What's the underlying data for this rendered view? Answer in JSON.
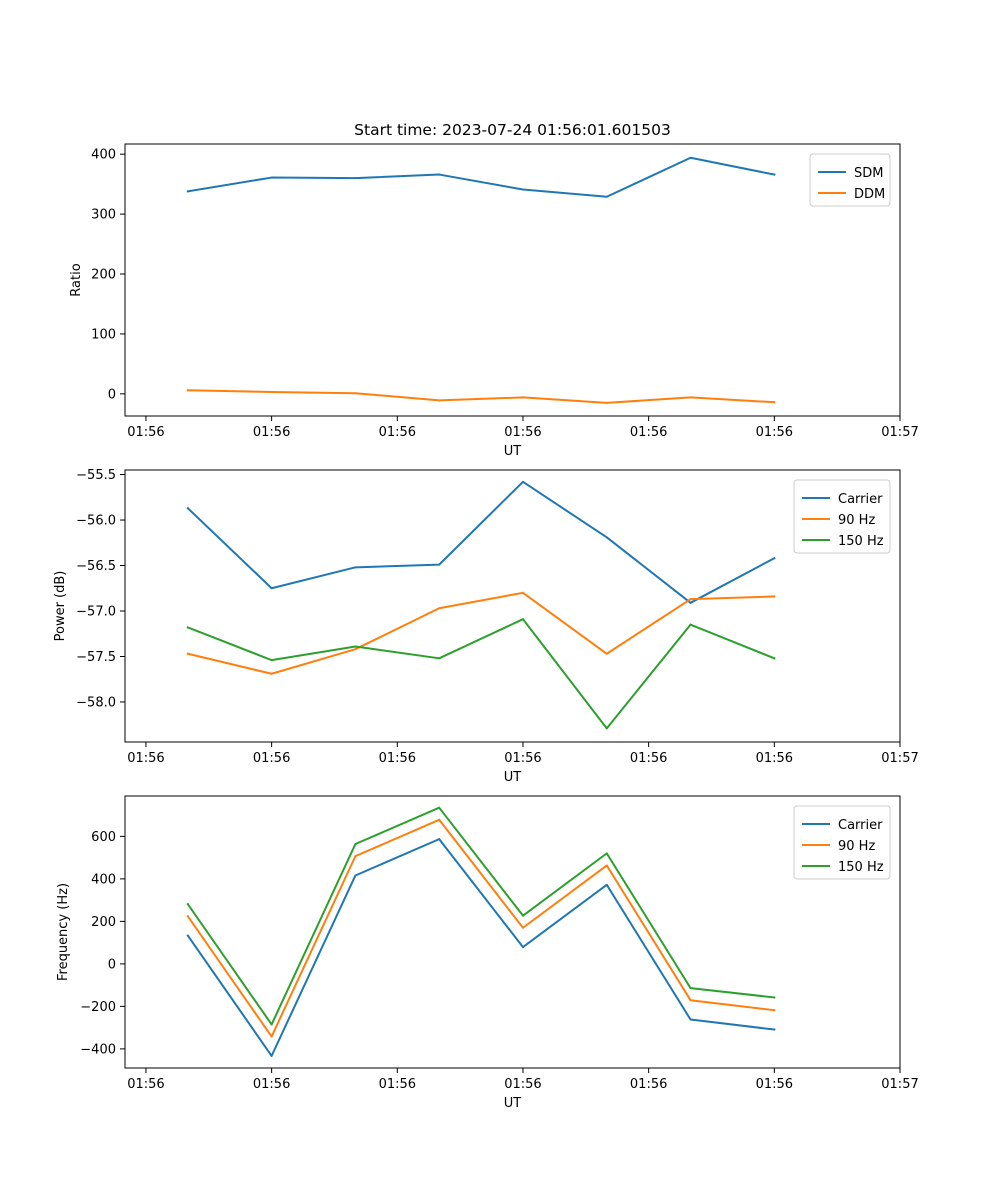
{
  "colors": {
    "blue": "#1f77b4",
    "orange": "#ff7f0e",
    "green": "#2ca02c"
  },
  "chart_data": [
    {
      "type": "line",
      "title": "Start time: 2023-07-24 01:56:01.601503",
      "xlabel": "UT",
      "ylabel": "Ratio",
      "x": [
        1,
        2,
        3,
        4,
        5,
        6,
        7,
        8
      ],
      "xlim": [
        0.25,
        9.5
      ],
      "xticks": [
        0.5,
        2,
        3.5,
        5,
        6.5,
        8,
        9.5
      ],
      "xtick_labels": [
        "01:56",
        "01:56",
        "01:56",
        "01:56",
        "01:56",
        "01:56",
        "01:57"
      ],
      "ylim": [
        -37,
        417
      ],
      "yticks": [
        0,
        100,
        200,
        300,
        400
      ],
      "ytick_labels": [
        "0",
        "100",
        "200",
        "300",
        "400"
      ],
      "legend_position": "top-right",
      "series": [
        {
          "name": "SDM",
          "color": "#1f77b4",
          "values": [
            338,
            361,
            360,
            366,
            341,
            329,
            394,
            366
          ]
        },
        {
          "name": "DDM",
          "color": "#ff7f0e",
          "values": [
            6,
            3,
            1,
            -11,
            -6,
            -15,
            -6,
            -14
          ]
        }
      ]
    },
    {
      "type": "line",
      "title": "",
      "xlabel": "UT",
      "ylabel": "Power (dB)",
      "x": [
        1,
        2,
        3,
        4,
        5,
        6,
        7,
        8
      ],
      "xlim": [
        0.25,
        9.5
      ],
      "xticks": [
        0.5,
        2,
        3.5,
        5,
        6.5,
        8,
        9.5
      ],
      "xtick_labels": [
        "01:56",
        "01:56",
        "01:56",
        "01:56",
        "01:56",
        "01:56",
        "01:57"
      ],
      "ylim": [
        -58.44,
        -55.45
      ],
      "yticks": [
        -55.5,
        -56.0,
        -56.5,
        -57.0,
        -57.5,
        -58.0
      ],
      "ytick_labels": [
        "−55.5",
        "−56.0",
        "−56.5",
        "−57.0",
        "−57.5",
        "−58.0"
      ],
      "legend_position": "top-right",
      "series": [
        {
          "name": "Carrier",
          "color": "#1f77b4",
          "values": [
            -55.87,
            -56.75,
            -56.52,
            -56.49,
            -55.58,
            -56.19,
            -56.91,
            -56.42
          ]
        },
        {
          "name": "90 Hz",
          "color": "#ff7f0e",
          "values": [
            -57.47,
            -57.69,
            -57.42,
            -56.97,
            -56.8,
            -57.47,
            -56.87,
            -56.84
          ]
        },
        {
          "name": "150 Hz",
          "color": "#2ca02c",
          "values": [
            -57.18,
            -57.54,
            -57.39,
            -57.52,
            -57.09,
            -58.29,
            -57.15,
            -57.52
          ]
        }
      ]
    },
    {
      "type": "line",
      "title": "",
      "xlabel": "UT",
      "ylabel": "Frequency (Hz)",
      "x": [
        1,
        2,
        3,
        4,
        5,
        6,
        7,
        8
      ],
      "xlim": [
        0.25,
        9.5
      ],
      "xticks": [
        0.5,
        2,
        3.5,
        5,
        6.5,
        8,
        9.5
      ],
      "xtick_labels": [
        "01:56",
        "01:56",
        "01:56",
        "01:56",
        "01:56",
        "01:56",
        "01:57"
      ],
      "ylim": [
        -490,
        790
      ],
      "yticks": [
        600,
        400,
        200,
        0,
        -200,
        -400
      ],
      "ytick_labels": [
        "600",
        "400",
        "200",
        "0",
        "−200",
        "−400"
      ],
      "legend_position": "top-right",
      "series": [
        {
          "name": "Carrier",
          "color": "#1f77b4",
          "values": [
            133,
            -433,
            416,
            587,
            79,
            372,
            -262,
            -309
          ]
        },
        {
          "name": "90 Hz",
          "color": "#ff7f0e",
          "values": [
            224,
            -342,
            507,
            678,
            170,
            463,
            -171,
            -218
          ]
        },
        {
          "name": "150 Hz",
          "color": "#2ca02c",
          "values": [
            281,
            -285,
            564,
            735,
            227,
            520,
            -114,
            -158
          ]
        }
      ]
    }
  ]
}
